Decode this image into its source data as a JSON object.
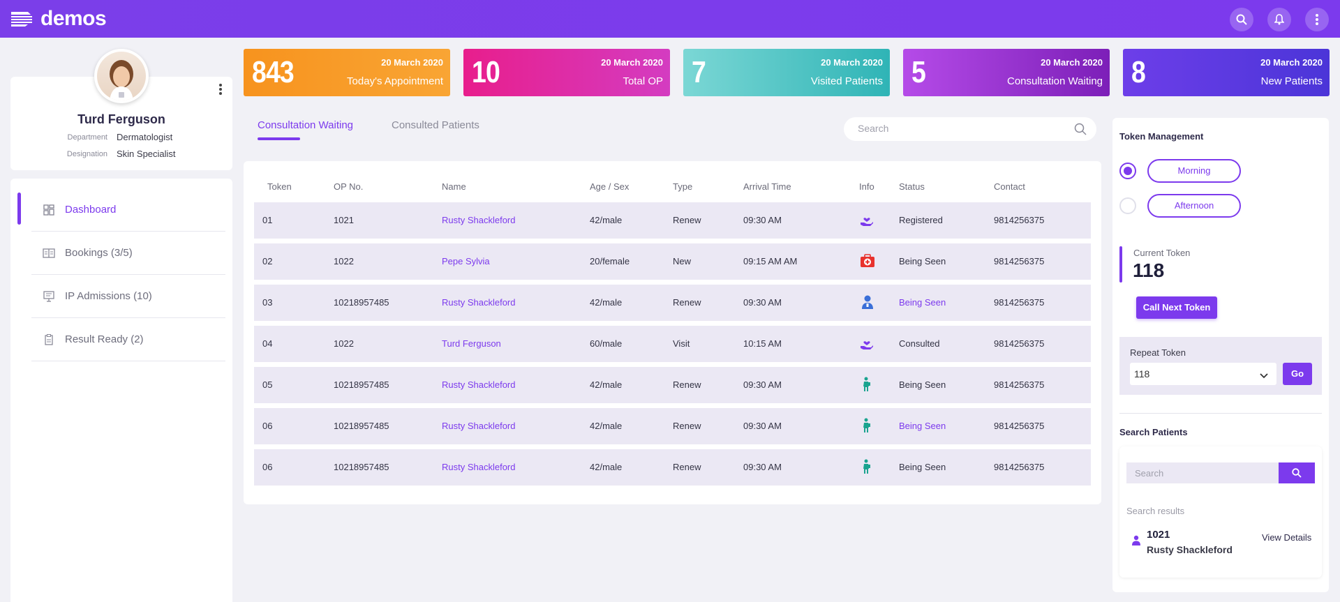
{
  "app": {
    "logo_text": "demos"
  },
  "profile": {
    "name": "Turd Ferguson",
    "department_label": "Department",
    "department": "Dermatologist",
    "designation_label": "Designation",
    "designation": "Skin Specialist"
  },
  "nav": {
    "items": [
      {
        "label": "Dashboard",
        "icon": "dashboard-icon"
      },
      {
        "label": "Bookings (3/5)",
        "icon": "bookings-icon"
      },
      {
        "label": "IP Admissions (10)",
        "icon": "admissions-icon"
      },
      {
        "label": "Result Ready (2)",
        "icon": "clipboard-icon"
      }
    ]
  },
  "stats": [
    {
      "value": "843",
      "date": "20 March 2020",
      "label": "Today's Appointment",
      "color": "#f7931e"
    },
    {
      "value": "10",
      "date": "20 March 2020",
      "label": "Total OP",
      "color": "#e0208a"
    },
    {
      "value": "7",
      "date": "20 March 2020",
      "label": "Visited Patients",
      "color": "#3fc1c0"
    },
    {
      "value": "5",
      "date": "20 March 2020",
      "label": "Consultation Waiting",
      "color": "#9b2bd6"
    },
    {
      "value": "8",
      "date": "20 March 2020",
      "label": "New Patients",
      "color": "#5a37e0"
    }
  ],
  "tabs": [
    {
      "label": "Consultation Waiting"
    },
    {
      "label": "Consulted Patients"
    }
  ],
  "search": {
    "placeholder": "Search"
  },
  "table": {
    "headers": [
      "Token",
      "OP No.",
      "Name",
      "Age / Sex",
      "Type",
      "Arrival Time",
      "Info",
      "Status",
      "Contact"
    ],
    "rows": [
      {
        "token": "01",
        "op": "1021",
        "name": "Rusty Shackleford",
        "age": "42/male",
        "type": "Renew",
        "arrival": "09:30 AM",
        "info": "hand-heart-icon",
        "status": "Registered",
        "contact": "9814256375"
      },
      {
        "token": "02",
        "op": "1022",
        "name": "Pepe Sylvia",
        "age": "20/female",
        "type": "New",
        "arrival": "09:15 AM AM",
        "info": "first-aid-icon",
        "status": "Being Seen",
        "contact": "9814256375"
      },
      {
        "token": "03",
        "op": "10218957485",
        "name": "Rusty Shackleford",
        "age": "42/male",
        "type": "Renew",
        "arrival": "09:30 AM",
        "info": "doctor-icon",
        "status": "Being Seen",
        "contact": "9814256375"
      },
      {
        "token": "04",
        "op": "1022",
        "name": "Turd Ferguson",
        "age": "60/male",
        "type": "Visit",
        "arrival": "10:15 AM",
        "info": "hand-heart-icon",
        "status": "Consulted",
        "contact": "9814256375"
      },
      {
        "token": "05",
        "op": "10218957485",
        "name": "Rusty Shackleford",
        "age": "42/male",
        "type": "Renew",
        "arrival": "09:30 AM",
        "info": "patient-icon",
        "status": "Being Seen",
        "contact": "9814256375"
      },
      {
        "token": "06",
        "op": "10218957485",
        "name": "Rusty Shackleford",
        "age": "42/male",
        "type": "Renew",
        "arrival": "09:30 AM",
        "info": "patient-icon",
        "status": "Being Seen",
        "contact": "9814256375"
      },
      {
        "token": "06",
        "op": "10218957485",
        "name": "Rusty Shackleford",
        "age": "42/male",
        "type": "Renew",
        "arrival": "09:30 AM",
        "info": "patient-icon",
        "status": "Being Seen",
        "contact": "9814256375"
      }
    ]
  },
  "token_management": {
    "title": "Token Management",
    "shift_morning": "Morning",
    "shift_afternoon": "Afternoon",
    "selected_shift": "Morning",
    "current_label": "Current Token",
    "current_value": "118",
    "call_next": "Call Next Token",
    "repeat_label": "Repeat Token",
    "repeat_value": "118",
    "go": "Go"
  },
  "search_patients": {
    "title": "Search Patients",
    "placeholder": "Search",
    "results_label": "Search results",
    "result": {
      "id": "1021",
      "name": "Rusty Shackleford",
      "action": "View Details"
    }
  },
  "colors": {
    "accent": "#7c3aed",
    "link": "#7c3aed",
    "row_bg": "#ebe8f4"
  }
}
